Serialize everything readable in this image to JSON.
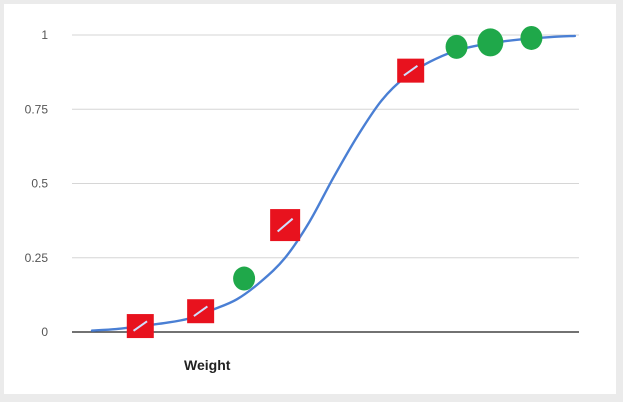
{
  "chart_data": {
    "type": "line",
    "title": "",
    "xlabel": "Weight",
    "ylabel": "",
    "ylim": [
      0,
      1
    ],
    "yticks": [
      "0",
      "0.25",
      "0.5",
      "0.75",
      "1"
    ],
    "grid": true,
    "legend": "none",
    "colors": {
      "line": "#4a7fd4",
      "red_marker": "#e8121e",
      "green_marker": "#1fa84a",
      "grid": "#d6d6d6",
      "axis": "#444444"
    },
    "series": [
      {
        "x": [
          0,
          1,
          2,
          3,
          4,
          5,
          6,
          7,
          8,
          9,
          10,
          11,
          12,
          13,
          14,
          15,
          16,
          17,
          18,
          19,
          20
        ],
        "values": [
          0.005,
          0.01,
          0.02,
          0.03,
          0.045,
          0.075,
          0.11,
          0.17,
          0.25,
          0.37,
          0.52,
          0.66,
          0.78,
          0.86,
          0.91,
          0.945,
          0.965,
          0.978,
          0.987,
          0.993,
          0.997
        ]
      }
    ],
    "markers": [
      {
        "color": "red",
        "x": 2,
        "y": 0.02
      },
      {
        "color": "red",
        "x": 4.5,
        "y": 0.07
      },
      {
        "color": "green",
        "x": 6.3,
        "y": 0.18
      },
      {
        "color": "red",
        "x": 8,
        "y": 0.36
      },
      {
        "color": "red",
        "x": 13.2,
        "y": 0.88
      },
      {
        "color": "green",
        "x": 15.1,
        "y": 0.96
      },
      {
        "color": "green",
        "x": 16.5,
        "y": 0.975
      },
      {
        "color": "green",
        "x": 18.2,
        "y": 0.99
      }
    ]
  }
}
